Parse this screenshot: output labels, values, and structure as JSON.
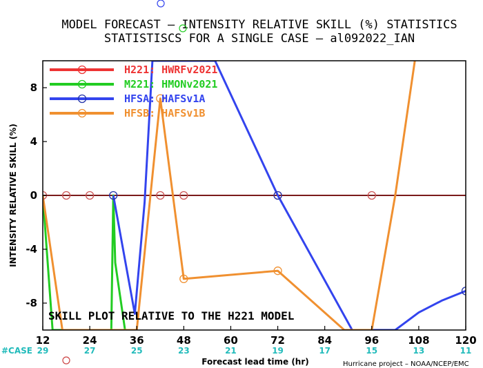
{
  "title_line1": "MODEL FORECAST – INTENSITY RELATIVE SKILL (%) STATISTICS",
  "title_line2": "STATISTISCS FOR A SINGLE CASE – al092022_IAN",
  "annotation": "SKILL PLOT RELATIVE TO THE H221 MODEL",
  "credit": "Hurricane project – NOAA/NCEP/EMC",
  "case_label": "#CASE",
  "chart_data": {
    "type": "line",
    "xlabel": "Forecast lead time (hr)",
    "ylabel": "INTENSITY RELATIVE SKILL (%)",
    "xlim": [
      12,
      120
    ],
    "ylim": [
      -10,
      10
    ],
    "x_ticks": [
      12,
      24,
      36,
      48,
      60,
      72,
      84,
      96,
      108,
      120
    ],
    "y_ticks": [
      -8,
      -4,
      0,
      4,
      8
    ],
    "grid": false,
    "legend_position": "top-left",
    "cases": [
      {
        "x": 12,
        "n": "29"
      },
      {
        "x": 24,
        "n": "27"
      },
      {
        "x": 36,
        "n": "25"
      },
      {
        "x": 48,
        "n": "23"
      },
      {
        "x": 60,
        "n": "21"
      },
      {
        "x": 72,
        "n": "19"
      },
      {
        "x": 84,
        "n": "17"
      },
      {
        "x": 96,
        "n": "15"
      },
      {
        "x": 108,
        "n": "13"
      },
      {
        "x": 120,
        "n": "11"
      }
    ],
    "series": [
      {
        "id": "h221",
        "legend_key": "H221:",
        "legend_name": "HWRFv2021",
        "color": "#ee3333",
        "x": [
          12,
          18,
          24,
          30,
          36,
          42,
          48,
          72,
          96,
          120
        ],
        "y": [
          0,
          0,
          0,
          0,
          0,
          0,
          0,
          0,
          0,
          0
        ]
      },
      {
        "id": "m221",
        "legend_key": "M221:",
        "legend_name": "HMONv2021",
        "color": "#22cc22",
        "x": [
          12,
          14.5,
          29.5,
          30,
          30.5,
          33
        ],
        "y": [
          0,
          -10,
          -10,
          0,
          -5,
          -10
        ]
      },
      {
        "id": "hfsa",
        "legend_key": "HFSA:",
        "legend_name": "HAFSv1A",
        "color": "#3344ee",
        "x": [
          30,
          33,
          35.5,
          38,
          40,
          56,
          72,
          91,
          102,
          108,
          114,
          120
        ],
        "y": [
          0,
          -4.8,
          -8.8,
          -0.5,
          10,
          10,
          0,
          -10,
          -10,
          -8.7,
          -7.8,
          -7.1
        ]
      },
      {
        "id": "hfsb",
        "legend_key": "HFSB:",
        "legend_name": "HAFSv1B",
        "color": "#f09030",
        "x": [
          12,
          17,
          36,
          42,
          48,
          72,
          89,
          96,
          102,
          107
        ],
        "y": [
          0,
          -10,
          -10,
          7.2,
          -6.2,
          -5.6,
          -10,
          -10,
          0,
          10
        ]
      }
    ],
    "markers": [
      {
        "series": "h221",
        "x": [
          12,
          18,
          24,
          42,
          48,
          72,
          96
        ]
      },
      {
        "series": "hfsa",
        "x": [
          30,
          72,
          120
        ]
      },
      {
        "series": "hfsb",
        "x": [
          42,
          48,
          72
        ]
      }
    ]
  }
}
